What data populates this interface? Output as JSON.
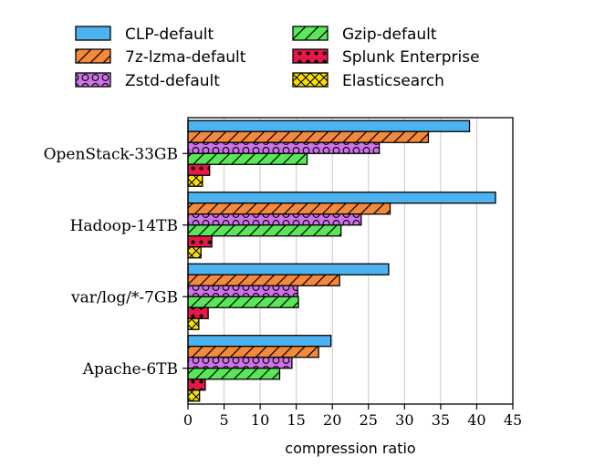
{
  "chart_data": {
    "type": "bar",
    "orientation": "horizontal",
    "categories": [
      "OpenStack-33GB",
      "Hadoop-14TB",
      "var/log/*-7GB",
      "Apache-6TB"
    ],
    "series": [
      {
        "name": "CLP-default",
        "color": "#4db3f0",
        "pattern": "none",
        "values": [
          39.0,
          42.6,
          27.8,
          19.8
        ]
      },
      {
        "name": "7z-lzma-default",
        "color": "#f5893b",
        "pattern": "diagonal-hatch",
        "values": [
          33.3,
          28.0,
          21.0,
          18.1
        ]
      },
      {
        "name": "Zstd-default",
        "color": "#cf73e8",
        "pattern": "circles",
        "values": [
          26.5,
          24.0,
          15.2,
          14.4
        ]
      },
      {
        "name": "Gzip-default",
        "color": "#59e659",
        "pattern": "diagonal-hatch",
        "values": [
          16.5,
          21.2,
          15.3,
          12.7
        ]
      },
      {
        "name": "Splunk Enterprise",
        "color": "#e8174a",
        "pattern": "dots",
        "values": [
          3.0,
          3.3,
          2.8,
          2.4
        ]
      },
      {
        "name": "Elasticsearch",
        "color": "#f7e000",
        "pattern": "crosshatch",
        "values": [
          2.0,
          1.8,
          1.5,
          1.6
        ]
      }
    ],
    "xlabel": "compression ratio",
    "ylabel": "",
    "xlim": [
      0,
      45
    ],
    "xticks": [
      0,
      5,
      10,
      15,
      20,
      25,
      30,
      35,
      40,
      45
    ],
    "grid": "vertical",
    "legend_position": "top",
    "legend_columns": 2
  }
}
